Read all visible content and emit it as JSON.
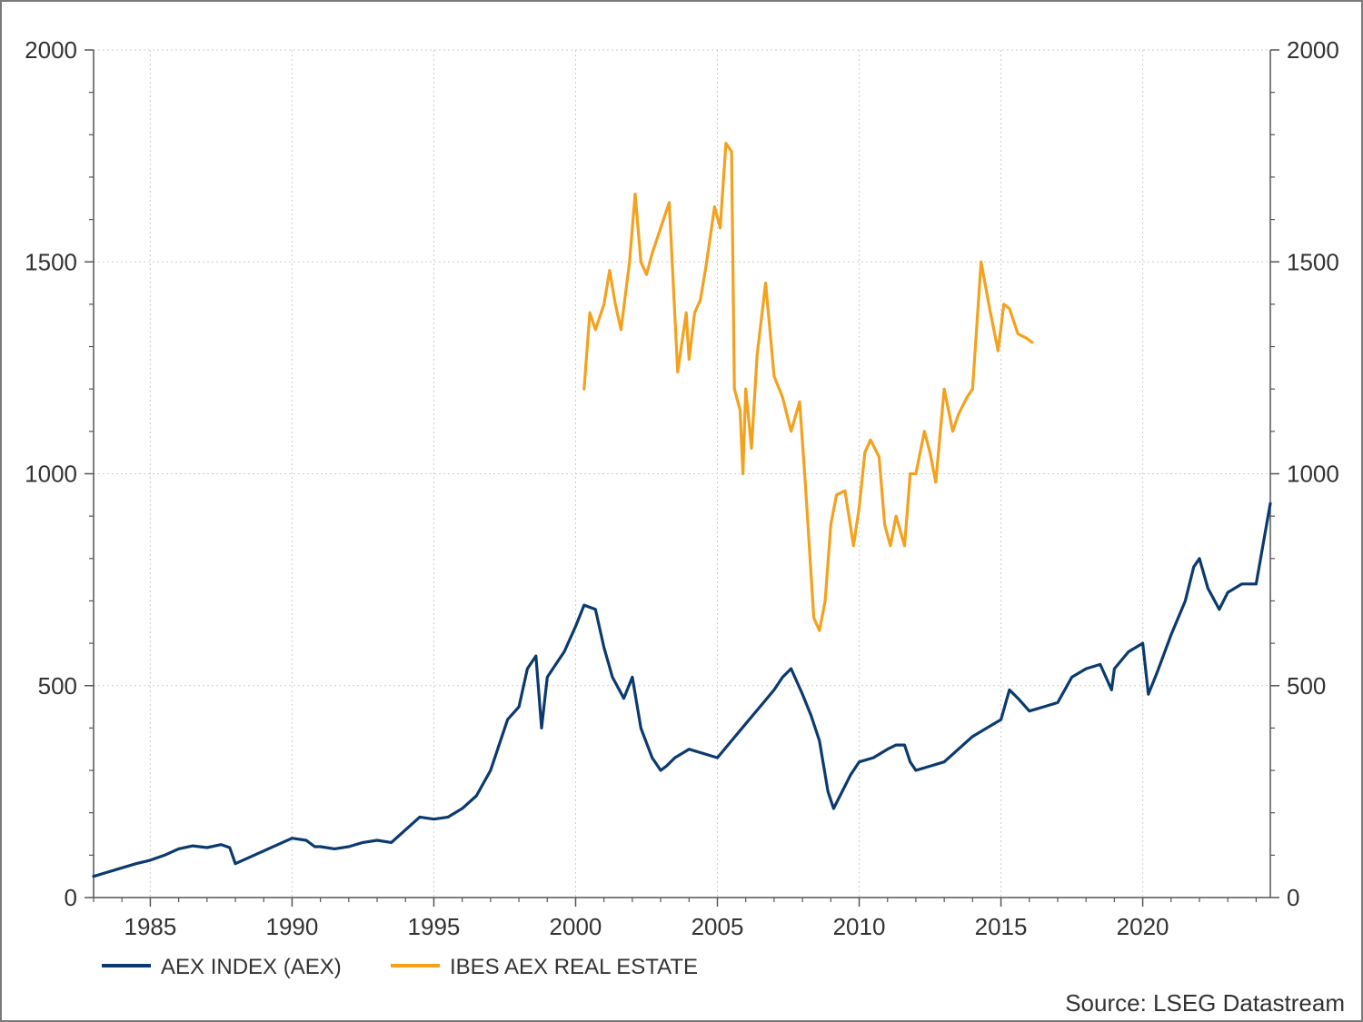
{
  "chart_data": {
    "type": "line",
    "title": "",
    "xlabel": "",
    "ylabel": "",
    "xlim": [
      1983.0,
      2024.5
    ],
    "ylim": [
      0,
      2000
    ],
    "y2lim": [
      0,
      2000
    ],
    "x_ticks": [
      1985,
      1990,
      1995,
      2000,
      2005,
      2010,
      2015,
      2020
    ],
    "y_ticks": [
      0,
      500,
      1000,
      1500,
      2000
    ],
    "grid": true,
    "legend_position": "bottom-left",
    "source": "Source: LSEG Datastream",
    "series": [
      {
        "name": "AEX INDEX (AEX)",
        "color": "#0b3a6e",
        "x": [
          1983.0,
          1983.5,
          1984.0,
          1984.5,
          1985.0,
          1985.5,
          1986.0,
          1986.5,
          1987.0,
          1987.5,
          1987.8,
          1988.0,
          1988.5,
          1989.0,
          1989.5,
          1990.0,
          1990.5,
          1990.8,
          1991.0,
          1991.5,
          1992.0,
          1992.5,
          1993.0,
          1993.5,
          1994.0,
          1994.5,
          1995.0,
          1995.5,
          1996.0,
          1996.5,
          1997.0,
          1997.3,
          1997.6,
          1998.0,
          1998.3,
          1998.6,
          1998.8,
          1999.0,
          1999.3,
          1999.6,
          2000.0,
          2000.3,
          2000.7,
          2001.0,
          2001.3,
          2001.7,
          2002.0,
          2002.3,
          2002.7,
          2003.0,
          2003.2,
          2003.5,
          2004.0,
          2004.5,
          2005.0,
          2005.5,
          2006.0,
          2006.5,
          2007.0,
          2007.3,
          2007.6,
          2008.0,
          2008.3,
          2008.6,
          2008.9,
          2009.1,
          2009.4,
          2009.7,
          2010.0,
          2010.5,
          2011.0,
          2011.3,
          2011.6,
          2011.8,
          2012.0,
          2012.5,
          2013.0,
          2013.5,
          2014.0,
          2014.5,
          2015.0,
          2015.3,
          2015.6,
          2016.0,
          2016.5,
          2017.0,
          2017.5,
          2018.0,
          2018.5,
          2018.9,
          2019.0,
          2019.5,
          2020.0,
          2020.2,
          2020.5,
          2021.0,
          2021.5,
          2021.8,
          2022.0,
          2022.3,
          2022.7,
          2023.0,
          2023.5,
          2024.0,
          2024.5
        ],
        "values": [
          50,
          60,
          70,
          80,
          88,
          100,
          115,
          122,
          118,
          125,
          118,
          80,
          95,
          110,
          125,
          140,
          135,
          120,
          120,
          115,
          120,
          130,
          135,
          130,
          160,
          190,
          185,
          190,
          210,
          240,
          300,
          360,
          420,
          450,
          540,
          570,
          400,
          520,
          550,
          580,
          640,
          690,
          680,
          590,
          520,
          470,
          520,
          400,
          330,
          300,
          310,
          330,
          350,
          340,
          330,
          370,
          410,
          450,
          490,
          520,
          540,
          480,
          430,
          370,
          250,
          210,
          250,
          290,
          320,
          330,
          350,
          360,
          360,
          320,
          300,
          310,
          320,
          350,
          380,
          400,
          420,
          490,
          470,
          440,
          450,
          460,
          520,
          540,
          550,
          490,
          540,
          580,
          600,
          480,
          530,
          620,
          700,
          780,
          800,
          730,
          680,
          720,
          740,
          740,
          930
        ]
      },
      {
        "name": "IBES AEX REAL ESTATE",
        "color": "#f4a11d",
        "x": [
          2000.3,
          2000.5,
          2000.7,
          2001.0,
          2001.2,
          2001.4,
          2001.6,
          2001.9,
          2002.1,
          2002.3,
          2002.5,
          2002.7,
          2003.0,
          2003.3,
          2003.6,
          2003.9,
          2004.0,
          2004.2,
          2004.4,
          2004.6,
          2004.9,
          2005.1,
          2005.3,
          2005.5,
          2005.6,
          2005.8,
          2005.9,
          2006.0,
          2006.2,
          2006.4,
          2006.7,
          2007.0,
          2007.3,
          2007.6,
          2007.9,
          2008.1,
          2008.4,
          2008.6,
          2008.8,
          2009.0,
          2009.2,
          2009.5,
          2009.8,
          2010.0,
          2010.2,
          2010.4,
          2010.7,
          2010.9,
          2011.1,
          2011.3,
          2011.6,
          2011.8,
          2012.0,
          2012.3,
          2012.5,
          2012.7,
          2013.0,
          2013.3,
          2013.5,
          2013.8,
          2014.0,
          2014.3,
          2014.6,
          2014.9,
          2015.1,
          2015.3,
          2015.6,
          2015.9,
          2016.1
        ],
        "values": [
          1200,
          1380,
          1340,
          1400,
          1480,
          1400,
          1340,
          1500,
          1660,
          1500,
          1470,
          1520,
          1580,
          1640,
          1240,
          1380,
          1270,
          1380,
          1410,
          1490,
          1630,
          1580,
          1780,
          1760,
          1200,
          1150,
          1000,
          1200,
          1060,
          1280,
          1450,
          1230,
          1180,
          1100,
          1170,
          980,
          660,
          630,
          700,
          880,
          950,
          960,
          830,
          920,
          1050,
          1080,
          1040,
          880,
          830,
          900,
          830,
          1000,
          1000,
          1100,
          1050,
          980,
          1200,
          1100,
          1140,
          1180,
          1200,
          1500,
          1390,
          1290,
          1400,
          1390,
          1330,
          1320,
          1310
        ]
      }
    ]
  }
}
